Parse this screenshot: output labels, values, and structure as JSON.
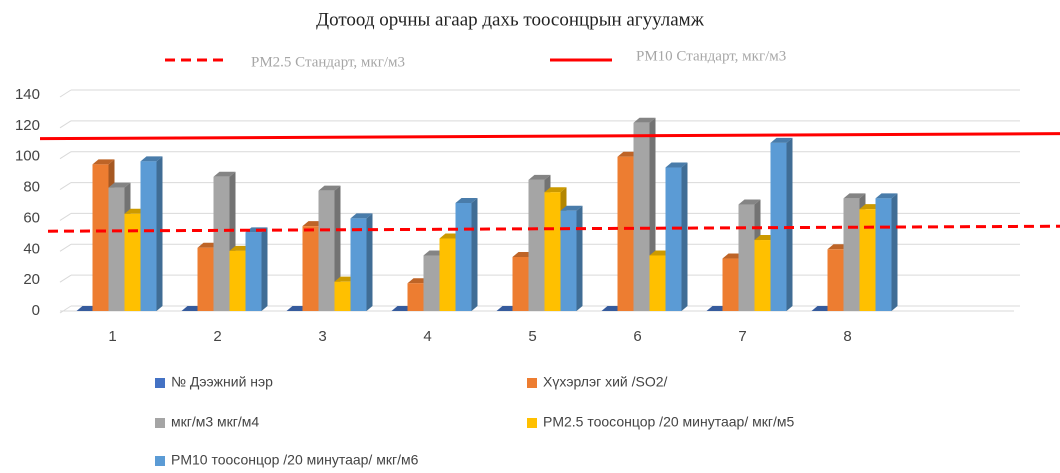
{
  "chart_data": {
    "type": "bar",
    "title": "Дотоод орчны агаар дахь тоосонцрын агууламж",
    "categories": [
      "1",
      "2",
      "3",
      "4",
      "5",
      "6",
      "7",
      "8"
    ],
    "series": [
      {
        "name": "№ Дээжний нэр",
        "color": "#4472c4",
        "values": [
          0,
          0,
          0,
          0,
          0,
          0,
          0,
          0
        ]
      },
      {
        "name": "Хүхэрлэг хий /SO2/",
        "color": "#ed7d31",
        "values": [
          95,
          41,
          55,
          18,
          35,
          100,
          34,
          40
        ]
      },
      {
        "name": "мкг/м3 мкг/м4",
        "color": "#a5a5a5",
        "values": [
          80,
          87,
          78,
          36,
          85,
          122,
          69,
          73
        ]
      },
      {
        "name": "PM2.5 тоосонцор /20 минутаар/ мкг/м5",
        "color": "#ffc000",
        "values": [
          63,
          39,
          19,
          47,
          77,
          36,
          46,
          66
        ]
      },
      {
        "name": "PM10 тоосонцор /20 минутаар/ мкг/м6",
        "color": "#5b9bd5",
        "values": [
          97,
          51,
          60,
          70,
          65,
          93,
          109,
          73
        ]
      }
    ],
    "reference_lines": [
      {
        "name": "PM2.5 Стандарт, мкг/м3",
        "value": 53,
        "style": "dashed",
        "color": "#ff0000"
      },
      {
        "name": "PM10 Стандарт, мкг/м3",
        "value": 113,
        "style": "solid",
        "color": "#ff0000"
      }
    ],
    "ylim": [
      0,
      140
    ],
    "yticks": [
      0,
      20,
      40,
      60,
      80,
      100,
      120,
      140
    ],
    "grid": true
  }
}
